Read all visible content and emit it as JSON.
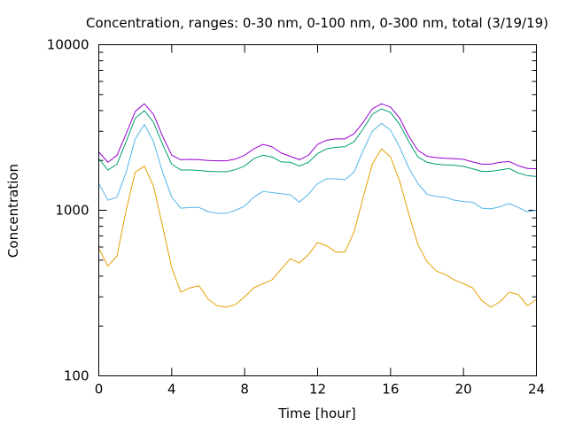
{
  "chart_data": {
    "type": "line",
    "title": "Concentration, ranges: 0-30 nm, 0-100 nm, 0-300 nm, total (3/19/19)",
    "xlabel": "Time [hour]",
    "ylabel": "Concentration",
    "xlim": [
      0,
      24
    ],
    "ylim": [
      100,
      10000
    ],
    "yscale": "log",
    "grid": false,
    "x_ticks": [
      0,
      4,
      8,
      12,
      16,
      20,
      24
    ],
    "x_tick_labels": [
      "0",
      "4",
      "8",
      "12",
      "16",
      "20",
      "24"
    ],
    "y_major_ticks": [
      100,
      1000,
      10000
    ],
    "y_tick_labels": [
      "100",
      "1000",
      "10000"
    ],
    "x": [
      0,
      0.5,
      1,
      1.5,
      2,
      2.5,
      3,
      3.5,
      4,
      4.5,
      5,
      5.5,
      6,
      6.5,
      7,
      7.5,
      8,
      8.5,
      9,
      9.5,
      10,
      10.5,
      11,
      11.5,
      12,
      12.5,
      13,
      13.5,
      14,
      14.5,
      15,
      15.5,
      16,
      16.5,
      17,
      17.5,
      18,
      18.5,
      19,
      19.5,
      20,
      20.5,
      21,
      21.5,
      22,
      22.5,
      23,
      23.5,
      24
    ],
    "series": [
      {
        "color": "#e69f00",
        "values": [
          590,
          460,
          530,
          1000,
          1700,
          1850,
          1400,
          800,
          450,
          320,
          340,
          350,
          290,
          265,
          260,
          270,
          300,
          340,
          360,
          380,
          440,
          510,
          480,
          540,
          640,
          610,
          560,
          560,
          740,
          1200,
          1900,
          2350,
          2100,
          1500,
          950,
          620,
          490,
          430,
          410,
          380,
          360,
          340,
          285,
          260,
          280,
          320,
          310,
          265,
          290
        ]
      },
      {
        "color": "#56b4e9",
        "values": [
          1450,
          1150,
          1200,
          1700,
          2700,
          3300,
          2600,
          1700,
          1200,
          1030,
          1040,
          1040,
          980,
          960,
          960,
          1000,
          1060,
          1200,
          1300,
          1280,
          1260,
          1240,
          1120,
          1250,
          1450,
          1550,
          1550,
          1530,
          1700,
          2300,
          3000,
          3350,
          3050,
          2400,
          1800,
          1450,
          1250,
          1210,
          1200,
          1150,
          1130,
          1120,
          1030,
          1020,
          1050,
          1100,
          1040,
          980,
          1000
        ]
      },
      {
        "color": "#009e73",
        "values": [
          2050,
          1750,
          1900,
          2600,
          3600,
          4000,
          3400,
          2500,
          1900,
          1750,
          1750,
          1740,
          1720,
          1710,
          1710,
          1760,
          1850,
          2050,
          2150,
          2100,
          1960,
          1950,
          1850,
          1950,
          2200,
          2350,
          2400,
          2420,
          2600,
          3100,
          3800,
          4100,
          3900,
          3300,
          2600,
          2100,
          1950,
          1900,
          1880,
          1870,
          1840,
          1780,
          1720,
          1720,
          1750,
          1790,
          1680,
          1620,
          1600
        ]
      },
      {
        "color": "#9400d3",
        "values": [
          2250,
          1950,
          2150,
          2900,
          3950,
          4400,
          3800,
          2800,
          2150,
          2020,
          2030,
          2020,
          2000,
          1990,
          1990,
          2040,
          2150,
          2350,
          2500,
          2420,
          2220,
          2120,
          2020,
          2150,
          2500,
          2650,
          2700,
          2700,
          2900,
          3400,
          4100,
          4400,
          4200,
          3600,
          2800,
          2300,
          2120,
          2080,
          2060,
          2050,
          2030,
          1960,
          1900,
          1900,
          1950,
          1970,
          1860,
          1790,
          1780
        ]
      }
    ]
  }
}
